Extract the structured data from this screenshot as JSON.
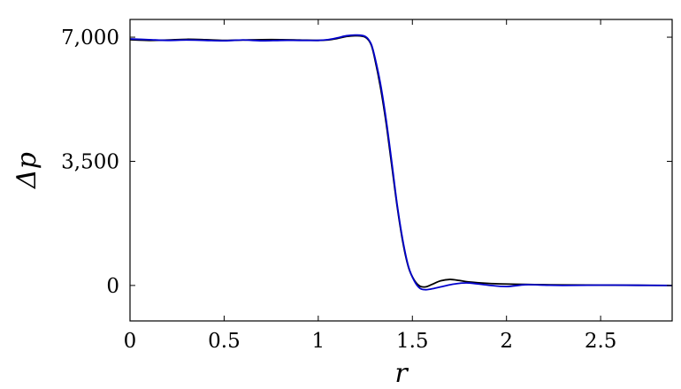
{
  "chart_data": {
    "type": "line",
    "title": "",
    "xlabel": "r",
    "ylabel": "Δp",
    "xlim": [
      0,
      2.88
    ],
    "ylim": [
      -1000,
      7500
    ],
    "grid": false,
    "legend": "none",
    "x_ticks": [
      {
        "value": 0,
        "label": "0"
      },
      {
        "value": 0.5,
        "label": "0.5"
      },
      {
        "value": 1,
        "label": "1"
      },
      {
        "value": 1.5,
        "label": "1.5"
      },
      {
        "value": 2,
        "label": "2"
      },
      {
        "value": 2.5,
        "label": "2.5"
      }
    ],
    "y_ticks": [
      {
        "value": 0,
        "label": "0"
      },
      {
        "value": 3500,
        "label": "3,500"
      },
      {
        "value": 7000,
        "label": "7,000"
      }
    ],
    "series": [
      {
        "color": "#000000",
        "x": [
          0,
          0.1,
          0.2,
          0.3,
          0.4,
          0.5,
          0.6,
          0.7,
          0.8,
          0.9,
          1.0,
          1.05,
          1.1,
          1.15,
          1.2,
          1.25,
          1.28,
          1.3,
          1.33,
          1.36,
          1.39,
          1.42,
          1.45,
          1.48,
          1.51,
          1.54,
          1.57,
          1.6,
          1.65,
          1.7,
          1.75,
          1.8,
          1.9,
          2.0,
          2.1,
          2.2,
          2.3,
          2.5,
          2.7,
          2.88
        ],
        "y": [
          6930,
          6910,
          6920,
          6940,
          6930,
          6910,
          6920,
          6930,
          6930,
          6920,
          6910,
          6920,
          6960,
          7020,
          7040,
          7000,
          6800,
          6400,
          5600,
          4600,
          3400,
          2200,
          1200,
          500,
          150,
          -20,
          -40,
          20,
          130,
          170,
          140,
          100,
          60,
          40,
          30,
          20,
          15,
          10,
          5,
          0
        ]
      },
      {
        "color": "#0000cc",
        "x": [
          0,
          0.1,
          0.2,
          0.3,
          0.4,
          0.5,
          0.6,
          0.7,
          0.8,
          0.9,
          1.0,
          1.05,
          1.1,
          1.15,
          1.2,
          1.25,
          1.28,
          1.3,
          1.33,
          1.36,
          1.39,
          1.42,
          1.45,
          1.48,
          1.51,
          1.54,
          1.57,
          1.6,
          1.65,
          1.7,
          1.75,
          1.8,
          1.9,
          2.0,
          2.1,
          2.2,
          2.3,
          2.5,
          2.7,
          2.88
        ],
        "y": [
          6950,
          6930,
          6910,
          6920,
          6910,
          6900,
          6920,
          6900,
          6910,
          6910,
          6910,
          6930,
          6980,
          7040,
          7060,
          7020,
          6820,
          6450,
          5700,
          4700,
          3500,
          2250,
          1250,
          520,
          130,
          -80,
          -120,
          -100,
          -40,
          20,
          60,
          70,
          10,
          -30,
          20,
          10,
          0,
          10,
          5,
          0
        ]
      }
    ]
  }
}
